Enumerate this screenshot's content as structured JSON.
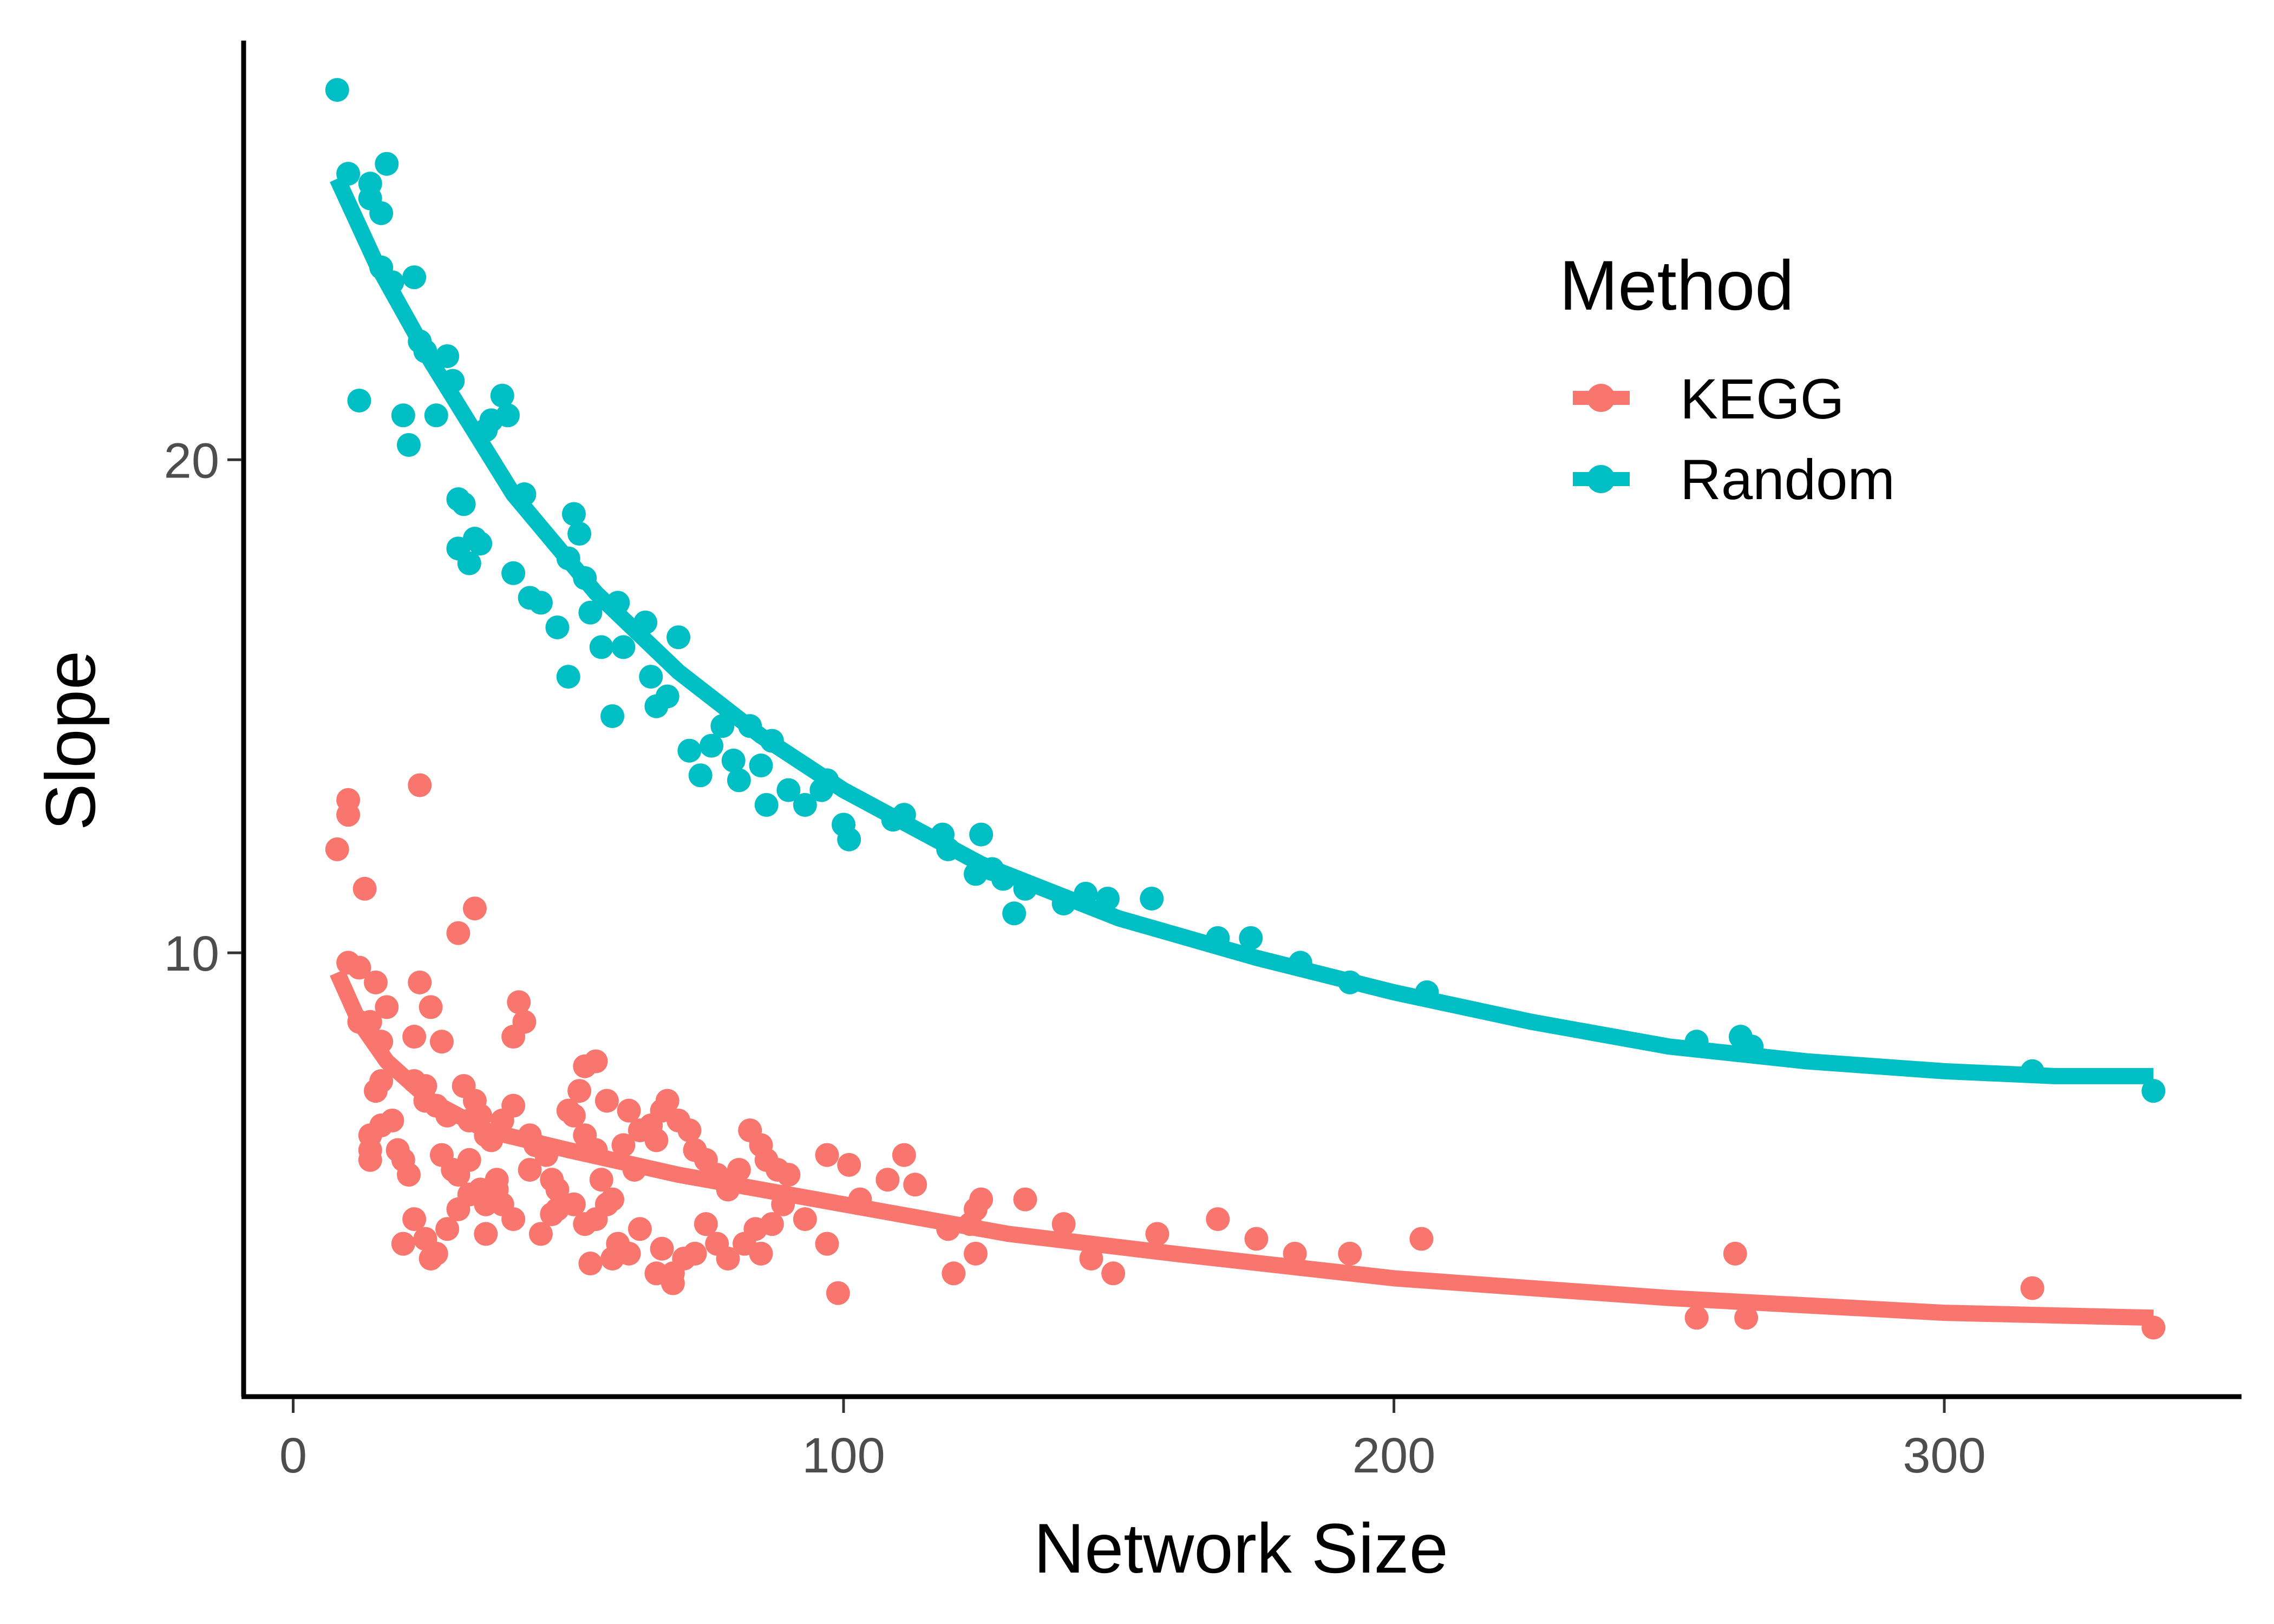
{
  "chart_data": {
    "type": "scatter",
    "xlabel": "Network Size",
    "ylabel": "Slope",
    "xlim": [
      -9,
      354
    ],
    "ylim": [
      1.0,
      28.5
    ],
    "x_ticks": [
      0,
      100,
      200,
      300
    ],
    "y_ticks": [
      10,
      20
    ],
    "grid": false,
    "legend": {
      "title": "Method",
      "position": "top-right"
    },
    "series": [
      {
        "name": "KEGG",
        "color": "#F8766D",
        "points": [
          [
            8,
            12.1
          ],
          [
            10,
            13.1
          ],
          [
            10,
            12.8
          ],
          [
            13,
            11.3
          ],
          [
            10,
            9.8
          ],
          [
            12,
            9.7
          ],
          [
            12,
            8.6
          ],
          [
            14,
            8.6
          ],
          [
            15,
            9.4
          ],
          [
            16,
            8.2
          ],
          [
            17,
            8.9
          ],
          [
            15,
            7.2
          ],
          [
            16,
            7.4
          ],
          [
            14,
            6.3
          ],
          [
            14,
            5.8
          ],
          [
            14,
            6.0
          ],
          [
            16,
            6.5
          ],
          [
            19,
            6.0
          ],
          [
            20,
            5.8
          ],
          [
            18,
            6.6
          ],
          [
            21,
            5.5
          ],
          [
            22,
            8.3
          ],
          [
            22,
            7.4
          ],
          [
            23,
            9.4
          ],
          [
            25,
            8.9
          ],
          [
            23,
            13.4
          ],
          [
            27,
            8.2
          ],
          [
            24,
            7.3
          ],
          [
            24,
            7.0
          ],
          [
            26,
            6.9
          ],
          [
            28,
            6.7
          ],
          [
            30,
            10.4
          ],
          [
            33,
            10.9
          ],
          [
            31,
            7.3
          ],
          [
            32,
            6.6
          ],
          [
            33,
            7.0
          ],
          [
            34,
            6.7
          ],
          [
            35,
            6.3
          ],
          [
            36,
            6.2
          ],
          [
            27,
            5.9
          ],
          [
            29,
            5.6
          ],
          [
            30,
            5.5
          ],
          [
            32,
            5.8
          ],
          [
            34,
            5.2
          ],
          [
            35,
            4.9
          ],
          [
            37,
            5.4
          ],
          [
            38,
            6.6
          ],
          [
            40,
            6.9
          ],
          [
            42,
            8.6
          ],
          [
            40,
            8.3
          ],
          [
            41,
            9.0
          ],
          [
            43,
            6.3
          ],
          [
            44,
            6.1
          ],
          [
            46,
            5.9
          ],
          [
            47,
            5.4
          ],
          [
            48,
            5.2
          ],
          [
            50,
            6.8
          ],
          [
            51,
            6.7
          ],
          [
            53,
            6.3
          ],
          [
            55,
            6.0
          ],
          [
            52,
            7.2
          ],
          [
            53,
            7.7
          ],
          [
            55,
            7.8
          ],
          [
            57,
            7.0
          ],
          [
            56,
            5.4
          ],
          [
            58,
            5.0
          ],
          [
            60,
            6.1
          ],
          [
            61,
            6.8
          ],
          [
            63,
            6.4
          ],
          [
            65,
            6.5
          ],
          [
            66,
            6.2
          ],
          [
            67,
            6.8
          ],
          [
            68,
            7.0
          ],
          [
            70,
            6.6
          ],
          [
            72,
            6.4
          ],
          [
            73,
            6.0
          ],
          [
            75,
            5.8
          ],
          [
            77,
            5.5
          ],
          [
            79,
            5.2
          ],
          [
            81,
            5.6
          ],
          [
            83,
            6.4
          ],
          [
            85,
            6.1
          ],
          [
            86,
            5.8
          ],
          [
            88,
            5.6
          ],
          [
            90,
            5.5
          ],
          [
            45,
            4.3
          ],
          [
            47,
            4.7
          ],
          [
            48,
            4.8
          ],
          [
            51,
            4.9
          ],
          [
            53,
            4.5
          ],
          [
            55,
            4.6
          ],
          [
            57,
            4.9
          ],
          [
            59,
            4.1
          ],
          [
            61,
            3.9
          ],
          [
            63,
            4.4
          ],
          [
            66,
            3.5
          ],
          [
            67,
            4.0
          ],
          [
            69,
            3.5
          ],
          [
            71,
            3.8
          ],
          [
            73,
            3.9
          ],
          [
            75,
            4.5
          ],
          [
            77,
            4.1
          ],
          [
            79,
            3.8
          ],
          [
            82,
            4.1
          ],
          [
            84,
            4.4
          ],
          [
            85,
            3.9
          ],
          [
            89,
            4.9
          ],
          [
            93,
            4.6
          ],
          [
            97,
            5.9
          ],
          [
            99,
            3.1
          ],
          [
            101,
            5.7
          ],
          [
            103,
            5.0
          ],
          [
            111,
            5.9
          ],
          [
            113,
            5.3
          ],
          [
            119,
            4.4
          ],
          [
            120,
            3.5
          ],
          [
            123,
            4.5
          ],
          [
            124,
            4.8
          ],
          [
            125,
            5.0
          ],
          [
            124,
            3.9
          ],
          [
            133,
            5.0
          ],
          [
            140,
            4.5
          ],
          [
            145,
            3.8
          ],
          [
            149,
            3.5
          ],
          [
            157,
            4.3
          ],
          [
            168,
            4.6
          ],
          [
            175,
            4.2
          ],
          [
            182,
            3.9
          ],
          [
            192,
            3.9
          ],
          [
            205,
            4.2
          ],
          [
            255,
            2.6
          ],
          [
            262,
            3.9
          ],
          [
            264,
            2.6
          ],
          [
            316,
            3.2
          ],
          [
            338,
            2.4
          ],
          [
            20,
            4.1
          ],
          [
            22,
            4.6
          ],
          [
            24,
            4.2
          ],
          [
            26,
            3.9
          ],
          [
            28,
            4.4
          ],
          [
            30,
            4.8
          ],
          [
            32,
            5.1
          ],
          [
            38,
            4.9
          ],
          [
            40,
            4.6
          ],
          [
            43,
            5.6
          ],
          [
            35,
            4.3
          ],
          [
            37,
            5.2
          ],
          [
            25,
            3.8
          ],
          [
            54,
            3.7
          ],
          [
            58,
            3.8
          ],
          [
            69,
            3.3
          ],
          [
            62,
            5.6
          ],
          [
            87,
            4.5
          ],
          [
            97,
            4.1
          ],
          [
            108,
            5.4
          ]
        ],
        "fit": [
          [
            8,
            9.6
          ],
          [
            12,
            8.6
          ],
          [
            17,
            7.8
          ],
          [
            25,
            7.0
          ],
          [
            35,
            6.4
          ],
          [
            50,
            6.0
          ],
          [
            70,
            5.5
          ],
          [
            100,
            4.9
          ],
          [
            130,
            4.3
          ],
          [
            160,
            3.9
          ],
          [
            200,
            3.4
          ],
          [
            250,
            3.0
          ],
          [
            300,
            2.7
          ],
          [
            338,
            2.6
          ]
        ]
      },
      {
        "name": "Random",
        "color": "#00BFC4",
        "points": [
          [
            8,
            27.5
          ],
          [
            10,
            25.8
          ],
          [
            12,
            21.2
          ],
          [
            14,
            25.3
          ],
          [
            14,
            25.6
          ],
          [
            16,
            25.0
          ],
          [
            17,
            26.0
          ],
          [
            16,
            23.9
          ],
          [
            18,
            23.6
          ],
          [
            20,
            20.9
          ],
          [
            21,
            20.3
          ],
          [
            22,
            23.7
          ],
          [
            23,
            22.4
          ],
          [
            24,
            22.2
          ],
          [
            26,
            20.9
          ],
          [
            28,
            22.1
          ],
          [
            29,
            21.6
          ],
          [
            30,
            19.2
          ],
          [
            31,
            19.1
          ],
          [
            30,
            18.2
          ],
          [
            32,
            17.9
          ],
          [
            33,
            18.4
          ],
          [
            34,
            18.3
          ],
          [
            35,
            20.6
          ],
          [
            36,
            20.8
          ],
          [
            38,
            21.3
          ],
          [
            39,
            20.9
          ],
          [
            40,
            17.7
          ],
          [
            42,
            19.3
          ],
          [
            43,
            17.2
          ],
          [
            45,
            17.1
          ],
          [
            48,
            16.6
          ],
          [
            50,
            18.0
          ],
          [
            50,
            15.6
          ],
          [
            51,
            18.9
          ],
          [
            52,
            18.5
          ],
          [
            53,
            17.6
          ],
          [
            54,
            16.9
          ],
          [
            56,
            16.2
          ],
          [
            58,
            14.8
          ],
          [
            59,
            17.1
          ],
          [
            60,
            16.2
          ],
          [
            64,
            16.7
          ],
          [
            65,
            15.6
          ],
          [
            66,
            15.0
          ],
          [
            68,
            15.2
          ],
          [
            70,
            16.4
          ],
          [
            72,
            14.1
          ],
          [
            74,
            13.6
          ],
          [
            76,
            14.2
          ],
          [
            78,
            14.6
          ],
          [
            80,
            13.9
          ],
          [
            81,
            13.5
          ],
          [
            83,
            14.6
          ],
          [
            85,
            13.8
          ],
          [
            87,
            14.3
          ],
          [
            86,
            13.0
          ],
          [
            90,
            13.3
          ],
          [
            93,
            13.0
          ],
          [
            96,
            13.3
          ],
          [
            97,
            13.5
          ],
          [
            100,
            12.6
          ],
          [
            101,
            12.3
          ],
          [
            109,
            12.7
          ],
          [
            111,
            12.8
          ],
          [
            118,
            12.4
          ],
          [
            119,
            12.1
          ],
          [
            124,
            11.6
          ],
          [
            125,
            12.4
          ],
          [
            127,
            11.7
          ],
          [
            129,
            11.5
          ],
          [
            131,
            10.8
          ],
          [
            133,
            11.3
          ],
          [
            140,
            11.0
          ],
          [
            144,
            11.2
          ],
          [
            148,
            11.1
          ],
          [
            156,
            11.1
          ],
          [
            168,
            10.3
          ],
          [
            174,
            10.3
          ],
          [
            183,
            9.8
          ],
          [
            192,
            9.4
          ],
          [
            206,
            9.2
          ],
          [
            255,
            8.2
          ],
          [
            263,
            8.3
          ],
          [
            265,
            8.1
          ],
          [
            316,
            7.6
          ],
          [
            338,
            7.2
          ]
        ],
        "fit": [
          [
            8,
            25.7
          ],
          [
            15,
            24.0
          ],
          [
            25,
            22.0
          ],
          [
            40,
            19.3
          ],
          [
            55,
            17.3
          ],
          [
            70,
            15.7
          ],
          [
            85,
            14.4
          ],
          [
            100,
            13.3
          ],
          [
            125,
            11.8
          ],
          [
            150,
            10.7
          ],
          [
            175,
            9.9
          ],
          [
            200,
            9.2
          ],
          [
            225,
            8.6
          ],
          [
            250,
            8.1
          ],
          [
            275,
            7.8
          ],
          [
            300,
            7.6
          ],
          [
            320,
            7.5
          ],
          [
            338,
            7.5
          ]
        ]
      }
    ]
  }
}
